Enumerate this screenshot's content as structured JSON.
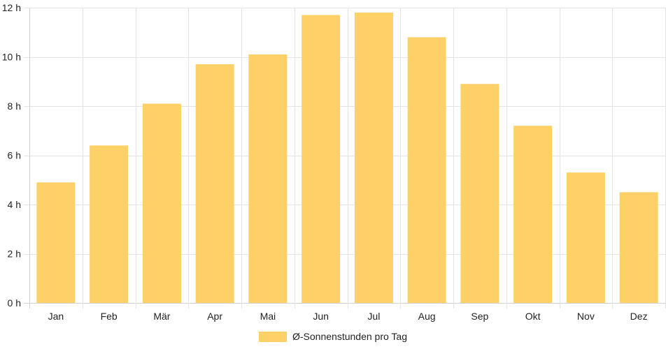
{
  "chart_data": {
    "type": "bar",
    "categories": [
      "Jan",
      "Feb",
      "Mär",
      "Apr",
      "Mai",
      "Jun",
      "Jul",
      "Aug",
      "Sep",
      "Okt",
      "Nov",
      "Dez"
    ],
    "series": [
      {
        "name": "Ø-Sonnenstunden pro Tag",
        "values": [
          4.9,
          6.4,
          8.1,
          9.7,
          10.1,
          11.7,
          11.8,
          10.8,
          8.9,
          7.2,
          5.3,
          4.5
        ],
        "color": "#fdd068"
      }
    ],
    "title": "",
    "xlabel": "",
    "ylabel": "",
    "ylim": [
      0,
      12
    ],
    "y_ticks": [
      "0 h",
      "2 h",
      "4 h",
      "6 h",
      "8 h",
      "10 h",
      "12 h"
    ],
    "grid": true,
    "legend_position": "bottom"
  },
  "colors": {
    "grid": "#e4e4e4",
    "text": "#222222"
  }
}
